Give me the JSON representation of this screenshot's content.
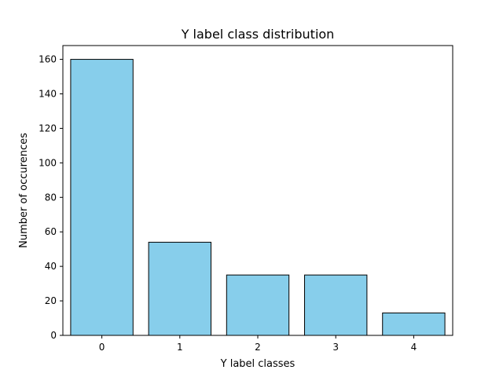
{
  "chart_data": {
    "type": "bar",
    "title": "Y label class distribution",
    "xlabel": "Y label classes",
    "ylabel": "Number of occurences",
    "categories": [
      "0",
      "1",
      "2",
      "3",
      "4"
    ],
    "values": [
      160,
      54,
      35,
      35,
      13
    ],
    "xlim": [
      -0.5,
      4.5
    ],
    "ylim": [
      0,
      168
    ],
    "yticks": [
      0,
      20,
      40,
      60,
      80,
      100,
      120,
      140,
      160
    ],
    "bar_color": "#87ceeb",
    "bar_edge_color": "#000000",
    "grid": false,
    "legend": false
  }
}
